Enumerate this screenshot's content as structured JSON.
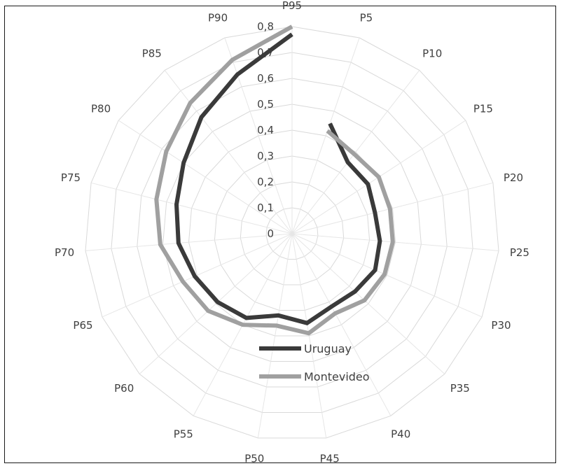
{
  "chart_data": {
    "type": "radar",
    "categories": [
      "P5",
      "P10",
      "P15",
      "P20",
      "P25",
      "P30",
      "P35",
      "P40",
      "P45",
      "P50",
      "P55",
      "P60",
      "P65",
      "P70",
      "P75",
      "P80",
      "P85",
      "P90",
      "P95"
    ],
    "r_ticks": [
      "0",
      "0,1",
      "0,2",
      "0,3",
      "0,4",
      "0,5",
      "0,6",
      "0,7",
      "0,8"
    ],
    "r_range": [
      0,
      0.8
    ],
    "grid": true,
    "legend_position": "bottom-center-inside",
    "series": [
      {
        "name": "Uruguay",
        "color": "#3a3a3a",
        "values": [
          0.45,
          0.35,
          0.35,
          0.33,
          0.34,
          0.35,
          0.33,
          0.32,
          0.35,
          0.32,
          0.37,
          0.39,
          0.41,
          0.44,
          0.46,
          0.5,
          0.57,
          0.65,
          0.77
        ]
      },
      {
        "name": "Montevideo",
        "color": "#a0a0a0",
        "values": [
          0.42,
          0.39,
          0.4,
          0.39,
          0.39,
          0.39,
          0.38,
          0.35,
          0.39,
          0.36,
          0.4,
          0.44,
          0.46,
          0.51,
          0.54,
          0.58,
          0.64,
          0.71,
          0.8
        ]
      }
    ]
  }
}
